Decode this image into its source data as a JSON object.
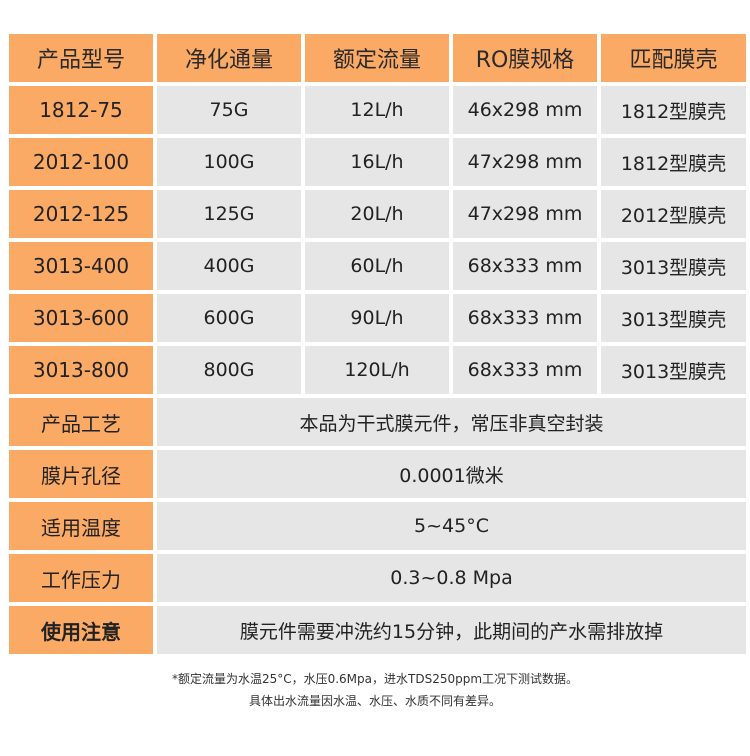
{
  "table": {
    "headers": [
      "产品型号",
      "净化通量",
      "额定流量",
      "RO膜规格",
      "匹配膜壳"
    ],
    "rows": [
      [
        "1812-75",
        "75G",
        "12L/h",
        "46x298 mm",
        "1812型膜壳"
      ],
      [
        "2012-100",
        "100G",
        "16L/h",
        "47x298 mm",
        "1812型膜壳"
      ],
      [
        "2012-125",
        "125G",
        "20L/h",
        "47x298 mm",
        "2012型膜壳"
      ],
      [
        "3013-400",
        "400G",
        "60L/h",
        "68x333 mm",
        "3013型膜壳"
      ],
      [
        "3013-600",
        "600G",
        "90L/h",
        "68x333 mm",
        "3013型膜壳"
      ],
      [
        "3013-800",
        "800G",
        "120L/h",
        "68x333 mm",
        "3013型膜壳"
      ]
    ],
    "specs": [
      {
        "label": "产品工艺",
        "value": "本品为干式膜元件，常压非真空封装"
      },
      {
        "label": "膜片孔径",
        "value": "0.0001微米"
      },
      {
        "label": "适用温度",
        "value": "5~45°C"
      },
      {
        "label": "工作压力",
        "value": "0.3~0.8 Mpa"
      },
      {
        "label": "使用注意",
        "value": "膜元件需要冲洗约15分钟，此期间的产水需排放掉"
      }
    ]
  },
  "notes": {
    "line1": "*额定流量为水温25°C，水压0.6Mpa，进水TDS250ppm工况下测试数据。",
    "line2": "具体出水流量因水温、水压、水质不同有差异。"
  }
}
